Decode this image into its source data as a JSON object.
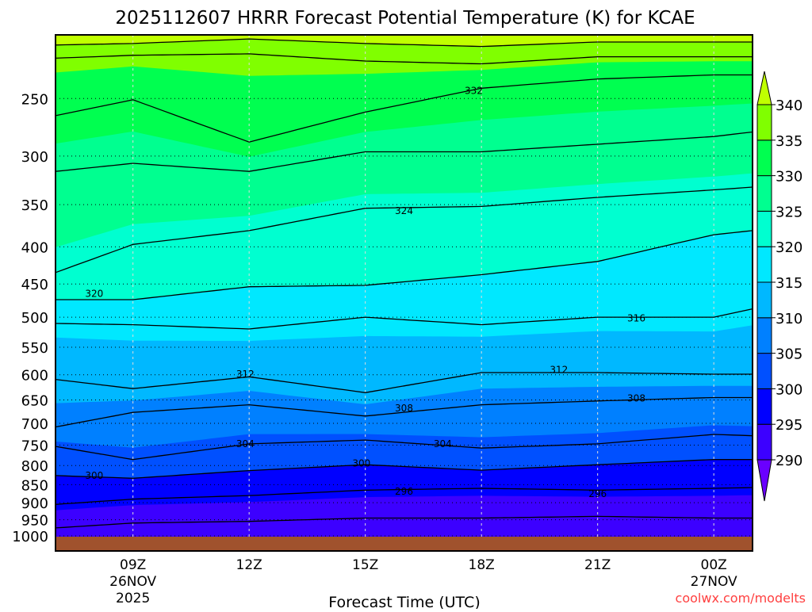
{
  "chart_data": {
    "type": "heatmap",
    "title": "2025112607 HRRR Forecast Potential Temperature (K) for KCAE",
    "xlabel": "Forecast Time (UTC)",
    "ylabel": "",
    "watermark": "coolwx.com/modelts",
    "x_range_hours": [
      7,
      25
    ],
    "y_range_hpa": [
      204,
      1000
    ],
    "y_scale": "log",
    "y_ticks": [
      250,
      300,
      350,
      400,
      450,
      500,
      550,
      600,
      650,
      700,
      750,
      800,
      850,
      900,
      950,
      1000
    ],
    "y_tick_labels": [
      "250",
      "300",
      "350",
      "400",
      "450",
      "500",
      "550",
      "600",
      "650",
      "700",
      "750",
      "800",
      "850",
      "900",
      "950",
      "1000"
    ],
    "x_ticks": [
      {
        "hour": 9,
        "lines": [
          "09Z",
          "26NOV",
          "2025"
        ]
      },
      {
        "hour": 12,
        "lines": [
          "12Z"
        ]
      },
      {
        "hour": 15,
        "lines": [
          "15Z"
        ]
      },
      {
        "hour": 18,
        "lines": [
          "18Z"
        ]
      },
      {
        "hour": 21,
        "lines": [
          "21Z"
        ]
      },
      {
        "hour": 24,
        "lines": [
          "00Z",
          "27NOV"
        ]
      }
    ],
    "grid": true,
    "contour_times": [
      7,
      9,
      12,
      15,
      18,
      21,
      24,
      25
    ],
    "contours": [
      {
        "theta": 292,
        "pressure": [
          975,
          960,
          955,
          945,
          945,
          940,
          945,
          945
        ]
      },
      {
        "theta": 296,
        "pressure": [
          905,
          890,
          880,
          865,
          860,
          865,
          860,
          858
        ]
      },
      {
        "theta": 300,
        "pressure": [
          826,
          833,
          813,
          798,
          812,
          798,
          785,
          785
        ]
      },
      {
        "theta": 304,
        "pressure": [
          753,
          785,
          747,
          738,
          757,
          747,
          725,
          728
        ]
      },
      {
        "theta": 308,
        "pressure": [
          708,
          676,
          660,
          684,
          660,
          652,
          645,
          645
        ]
      },
      {
        "theta": 312,
        "pressure": [
          609,
          627,
          604,
          635,
          596,
          596,
          599,
          599
        ]
      },
      {
        "theta": 316,
        "pressure": [
          510,
          512,
          519,
          500,
          512,
          500,
          500,
          487
        ]
      },
      {
        "theta": 320,
        "pressure": [
          473,
          473,
          454,
          452,
          437,
          419,
          385,
          380
        ]
      },
      {
        "theta": 324,
        "pressure": [
          434,
          397,
          380,
          354,
          352,
          342,
          334,
          331
        ]
      },
      {
        "theta": 328,
        "pressure": [
          315,
          307,
          315,
          296,
          296,
          289,
          282,
          278
        ]
      },
      {
        "theta": 332,
        "pressure": [
          264,
          251,
          287,
          261,
          242,
          235,
          232,
          232
        ]
      },
      {
        "theta": 336,
        "pressure": [
          220,
          218,
          217,
          222,
          224,
          219,
          219,
          219
        ]
      },
      {
        "theta": 340,
        "pressure": [
          211,
          210,
          207,
          210,
          212,
          209,
          209,
          209
        ]
      }
    ],
    "contour_labels": [
      {
        "text": "332",
        "hour": 17.8,
        "pressure": 244
      },
      {
        "text": "324",
        "hour": 16.0,
        "pressure": 357
      },
      {
        "text": "320",
        "hour": 8.0,
        "pressure": 464
      },
      {
        "text": "316",
        "hour": 22.0,
        "pressure": 502
      },
      {
        "text": "312",
        "hour": 11.9,
        "pressure": 599
      },
      {
        "text": "312",
        "hour": 20.0,
        "pressure": 591
      },
      {
        "text": "308",
        "hour": 16.0,
        "pressure": 667
      },
      {
        "text": "308",
        "hour": 22.0,
        "pressure": 647
      },
      {
        "text": "304",
        "hour": 11.9,
        "pressure": 747
      },
      {
        "text": "304",
        "hour": 17.0,
        "pressure": 747
      },
      {
        "text": "300",
        "hour": 8.0,
        "pressure": 826
      },
      {
        "text": "300",
        "hour": 14.9,
        "pressure": 795
      },
      {
        "text": "296",
        "hour": 16.0,
        "pressure": 869
      },
      {
        "text": "296",
        "hour": 21.0,
        "pressure": 875
      }
    ],
    "colorbar": {
      "levels": [
        290,
        295,
        300,
        305,
        310,
        315,
        320,
        325,
        330,
        335,
        340
      ],
      "labels": [
        "290",
        "295",
        "300",
        "305",
        "310",
        "315",
        "320",
        "325",
        "330",
        "335",
        "340"
      ],
      "colors": [
        "#6a00ff",
        "#3c00ff",
        "#0000ff",
        "#0050ff",
        "#0080ff",
        "#00b8ff",
        "#00e8ff",
        "#00ffd0",
        "#00ff90",
        "#00ff50",
        "#80ff00",
        "#c0ff00"
      ]
    },
    "ground_color": "#a0522d"
  }
}
